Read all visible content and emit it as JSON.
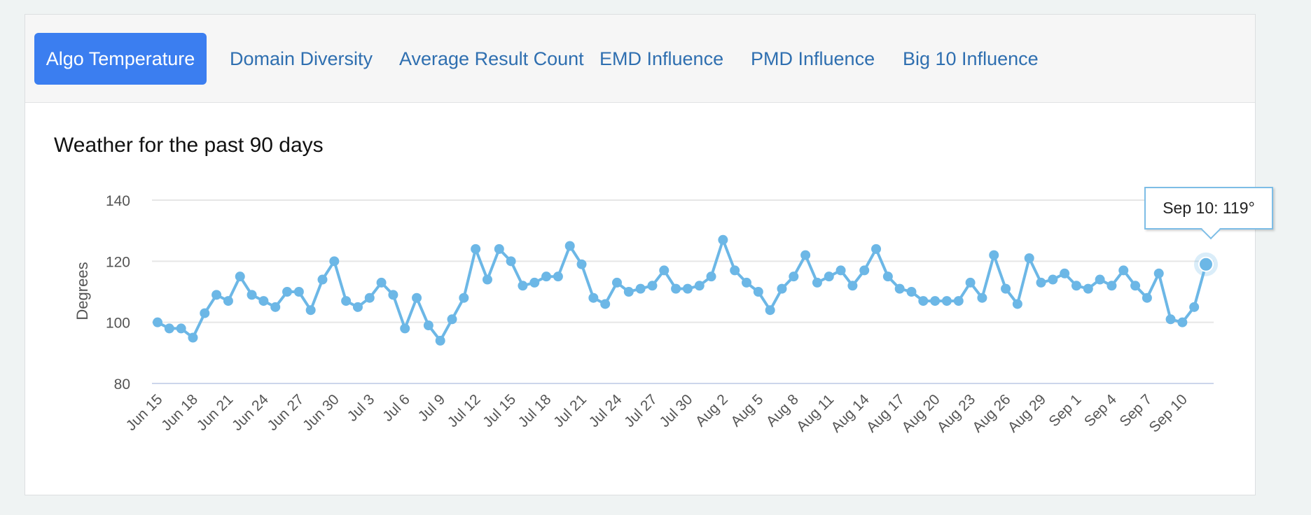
{
  "tabs": [
    {
      "label": "Algo Temperature",
      "active": true
    },
    {
      "label": "Domain Diversity",
      "active": false
    },
    {
      "label": "Average Result Count",
      "active": false
    },
    {
      "label": "EMD Influence",
      "active": false
    },
    {
      "label": "PMD Influence",
      "active": false
    },
    {
      "label": "Big 10 Influence",
      "active": false
    }
  ],
  "colors": {
    "accent": "#3b7ef0",
    "series": "#6cb7e6",
    "link": "#2f6fb0"
  },
  "tooltip": {
    "text": "Sep 10: 119°"
  },
  "chart_data": {
    "type": "line",
    "title": "Weather for the past 90 days",
    "ylabel": "Degrees",
    "xlabel": "",
    "ylim": [
      80,
      140
    ],
    "yticks": [
      80,
      100,
      120,
      140
    ],
    "grid": true,
    "x_tick_labels": [
      "Jun 15",
      "Jun 18",
      "Jun 21",
      "Jun 24",
      "Jun 27",
      "Jun 30",
      "Jul 3",
      "Jul 6",
      "Jul 9",
      "Jul 12",
      "Jul 15",
      "Jul 18",
      "Jul 21",
      "Jul 24",
      "Jul 27",
      "Jul 30",
      "Aug 2",
      "Aug 5",
      "Aug 8",
      "Aug 11",
      "Aug 14",
      "Aug 17",
      "Aug 20",
      "Aug 23",
      "Aug 26",
      "Aug 29",
      "Sep 1",
      "Sep 4",
      "Sep 7",
      "Sep 10"
    ],
    "x_start": "Jun 15",
    "x_end": "Sep 10",
    "series": [
      {
        "values": [
          100,
          98,
          98,
          95,
          103,
          109,
          107,
          115,
          109,
          107,
          105,
          110,
          110,
          104,
          114,
          120,
          107,
          105,
          108,
          113,
          109,
          98,
          108,
          99,
          94,
          101,
          108,
          124,
          114,
          124,
          120,
          112,
          113,
          115,
          115,
          125,
          119,
          108,
          106,
          113,
          110,
          111,
          112,
          117,
          111,
          111,
          112,
          115,
          127,
          117,
          113,
          110,
          104,
          111,
          115,
          122,
          113,
          115,
          117,
          112,
          117,
          124,
          115,
          111,
          110,
          107,
          107,
          107,
          107,
          113,
          108,
          122,
          111,
          106,
          121,
          113,
          114,
          116,
          112,
          111,
          114,
          112,
          117,
          112,
          108,
          116,
          101,
          100,
          105,
          119
        ]
      }
    ],
    "highlight": {
      "label": "Sep 10",
      "value": 119
    }
  }
}
